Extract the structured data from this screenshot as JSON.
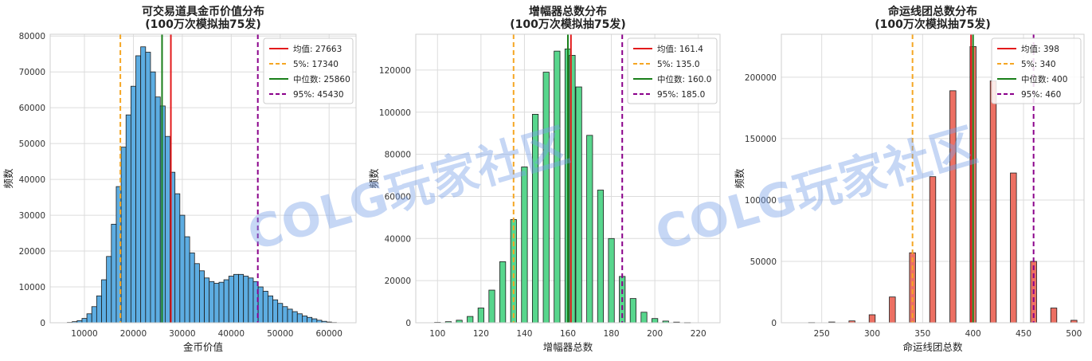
{
  "watermark": "COLG玩家社区",
  "chart_data": [
    {
      "type": "bar",
      "title_lines": [
        "可交易道具金币价值分布",
        "(100万次模拟抽75发)"
      ],
      "xlabel": "金币价值",
      "ylabel": "频数",
      "xlim": [
        3000,
        65500
      ],
      "ylim": [
        0,
        80500
      ],
      "xticks": [
        10000,
        20000,
        30000,
        40000,
        50000,
        60000
      ],
      "yticks": [
        0,
        10000,
        20000,
        30000,
        40000,
        50000,
        60000,
        70000,
        80000
      ],
      "grid": true,
      "color": "#5dade2",
      "bin_width": 1000,
      "bins_x": [
        7000,
        8000,
        9000,
        10000,
        11000,
        12000,
        13000,
        14000,
        15000,
        16000,
        17000,
        18000,
        19000,
        20000,
        21000,
        22000,
        23000,
        24000,
        25000,
        26000,
        27000,
        28000,
        29000,
        30000,
        31000,
        32000,
        33000,
        34000,
        35000,
        36000,
        37000,
        38000,
        39000,
        40000,
        41000,
        42000,
        43000,
        44000,
        45000,
        46000,
        47000,
        48000,
        49000,
        50000,
        51000,
        52000,
        53000,
        54000,
        55000,
        56000,
        57000,
        58000,
        59000,
        60000,
        61000
      ],
      "values": [
        100,
        300,
        600,
        1200,
        2500,
        4500,
        7500,
        12000,
        18500,
        27500,
        38000,
        49000,
        58000,
        66000,
        74500,
        77000,
        75500,
        70000,
        63000,
        60500,
        52000,
        42000,
        36000,
        30000,
        24000,
        19500,
        16500,
        14500,
        12500,
        11500,
        11000,
        11300,
        12000,
        13000,
        13500,
        13500,
        13000,
        12500,
        11500,
        10000,
        8800,
        7500,
        6400,
        5400,
        4500,
        3800,
        3100,
        2500,
        1900,
        1500,
        1100,
        700,
        400,
        200,
        80
      ],
      "lines": [
        {
          "label": "均值: 27663",
          "value": 27663,
          "color": "#e31a1c",
          "dash": false
        },
        {
          "label": "5%: 17340",
          "value": 17340,
          "color": "#f5a623",
          "dash": true
        },
        {
          "label": "中位数: 25860",
          "value": 25860,
          "color": "#1a7f1a",
          "dash": false
        },
        {
          "label": "95%: 45430",
          "value": 45430,
          "color": "#8b008b",
          "dash": true
        }
      ],
      "legend_position": "top-right"
    },
    {
      "type": "bar",
      "title_lines": [
        "增幅器总数分布",
        "(100万次模拟抽75发)"
      ],
      "xlabel": "增幅器总数",
      "ylabel": "频数",
      "xlim": [
        90,
        230
      ],
      "ylim": [
        0,
        137000
      ],
      "xticks": [
        100,
        120,
        140,
        160,
        180,
        200,
        220
      ],
      "yticks": [
        0,
        20000,
        40000,
        60000,
        80000,
        100000,
        120000
      ],
      "grid": true,
      "color": "#58d68d",
      "bin_width": 2.7,
      "bins_x": [
        95,
        100,
        105,
        110,
        115,
        120,
        125,
        130,
        135,
        140,
        145,
        150,
        155,
        160,
        162,
        165,
        170,
        175,
        180,
        185,
        190,
        195,
        200,
        205,
        210,
        215,
        220
      ],
      "values": [
        0,
        200,
        500,
        1200,
        3000,
        7000,
        15500,
        29000,
        49000,
        74000,
        99000,
        119000,
        129000,
        130000,
        127000,
        112000,
        89000,
        63000,
        40000,
        22000,
        11500,
        5000,
        2000,
        800,
        300,
        100,
        0
      ],
      "lines": [
        {
          "label": "均值: 161.4",
          "value": 161.4,
          "color": "#e31a1c",
          "dash": false
        },
        {
          "label": "5%: 135.0",
          "value": 135,
          "color": "#f5a623",
          "dash": true
        },
        {
          "label": "中位数: 160.0",
          "value": 160,
          "color": "#1a7f1a",
          "dash": false
        },
        {
          "label": "95%: 185.0",
          "value": 185,
          "color": "#8b008b",
          "dash": true
        }
      ],
      "legend_position": "top-right"
    },
    {
      "type": "bar",
      "title_lines": [
        "命运线团总数分布",
        "(100万次模拟抽75发)"
      ],
      "xlabel": "命运线团总数",
      "ylabel": "频数",
      "xlim": [
        210,
        510
      ],
      "ylim": [
        0,
        235000
      ],
      "xticks": [
        250,
        300,
        350,
        400,
        450,
        500
      ],
      "yticks": [
        0,
        50000,
        100000,
        150000,
        200000
      ],
      "grid": true,
      "color": "#ec7063",
      "bin_width": 6,
      "bins_x": [
        220,
        240,
        260,
        280,
        300,
        320,
        340,
        360,
        380,
        400,
        420,
        440,
        460,
        480,
        500
      ],
      "values": [
        0,
        200,
        600,
        1500,
        6500,
        21000,
        57000,
        119000,
        189000,
        225000,
        197000,
        122000,
        50000,
        12000,
        2000
      ],
      "lines": [
        {
          "label": "均值: 398",
          "value": 398,
          "color": "#e31a1c",
          "dash": false
        },
        {
          "label": "5%: 340",
          "value": 340,
          "color": "#f5a623",
          "dash": true
        },
        {
          "label": "中位数: 400",
          "value": 400,
          "color": "#1a7f1a",
          "dash": false
        },
        {
          "label": "95%: 460",
          "value": 460,
          "color": "#8b008b",
          "dash": true
        }
      ],
      "legend_position": "top-right"
    }
  ]
}
